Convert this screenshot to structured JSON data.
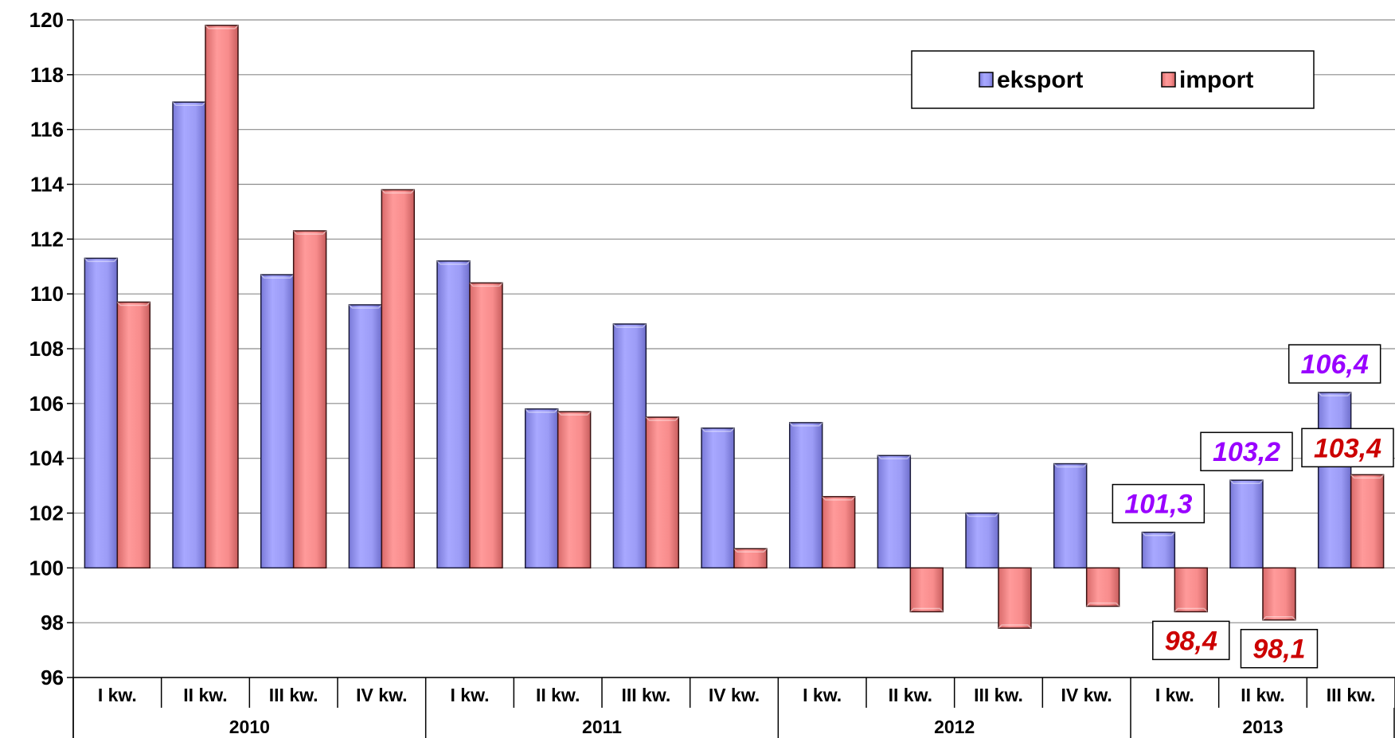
{
  "chart_data": {
    "type": "bar",
    "title": "",
    "xlabel": "",
    "ylabel": "",
    "ylim": [
      96,
      120
    ],
    "yticks": [
      "96",
      "98",
      "100",
      "102",
      "104",
      "106",
      "108",
      "110",
      "112",
      "114",
      "116",
      "118",
      "120"
    ],
    "baseline": 100,
    "grid": true,
    "legend_position": "top-right",
    "categories": [
      "I kw.",
      "II kw.",
      "III kw.",
      "IV kw.",
      "I kw.",
      "II kw.",
      "III kw.",
      "IV kw.",
      "I kw.",
      "II kw.",
      "III kw.",
      "IV kw.",
      "I kw.",
      "II kw.",
      "III kw."
    ],
    "groups": [
      {
        "label": "2010",
        "count": 4
      },
      {
        "label": "2011",
        "count": 4
      },
      {
        "label": "2012",
        "count": 4
      },
      {
        "label": "2013",
        "count": 3
      }
    ],
    "series": [
      {
        "name": "eksport",
        "color": "#9999ff",
        "values": [
          111.3,
          117.0,
          110.7,
          109.6,
          111.2,
          105.8,
          108.9,
          105.1,
          105.3,
          104.1,
          102.0,
          103.8,
          101.3,
          103.2,
          106.4
        ]
      },
      {
        "name": "import",
        "color": "#ff8080",
        "values": [
          109.7,
          119.8,
          112.3,
          113.8,
          110.4,
          105.7,
          105.5,
          100.7,
          102.6,
          98.4,
          97.8,
          98.6,
          98.4,
          98.1,
          103.4
        ]
      }
    ],
    "data_labels": [
      {
        "series": 0,
        "index": 12,
        "text": "101,3",
        "color": "#9900ff"
      },
      {
        "series": 0,
        "index": 13,
        "text": "103,2",
        "color": "#9900ff"
      },
      {
        "series": 0,
        "index": 14,
        "text": "106,4",
        "color": "#9900ff"
      },
      {
        "series": 1,
        "index": 12,
        "text": "98,4",
        "color": "#cc0000"
      },
      {
        "series": 1,
        "index": 13,
        "text": "98,1",
        "color": "#cc0000"
      },
      {
        "series": 1,
        "index": 14,
        "text": "103,4",
        "color": "#cc0000"
      }
    ]
  }
}
